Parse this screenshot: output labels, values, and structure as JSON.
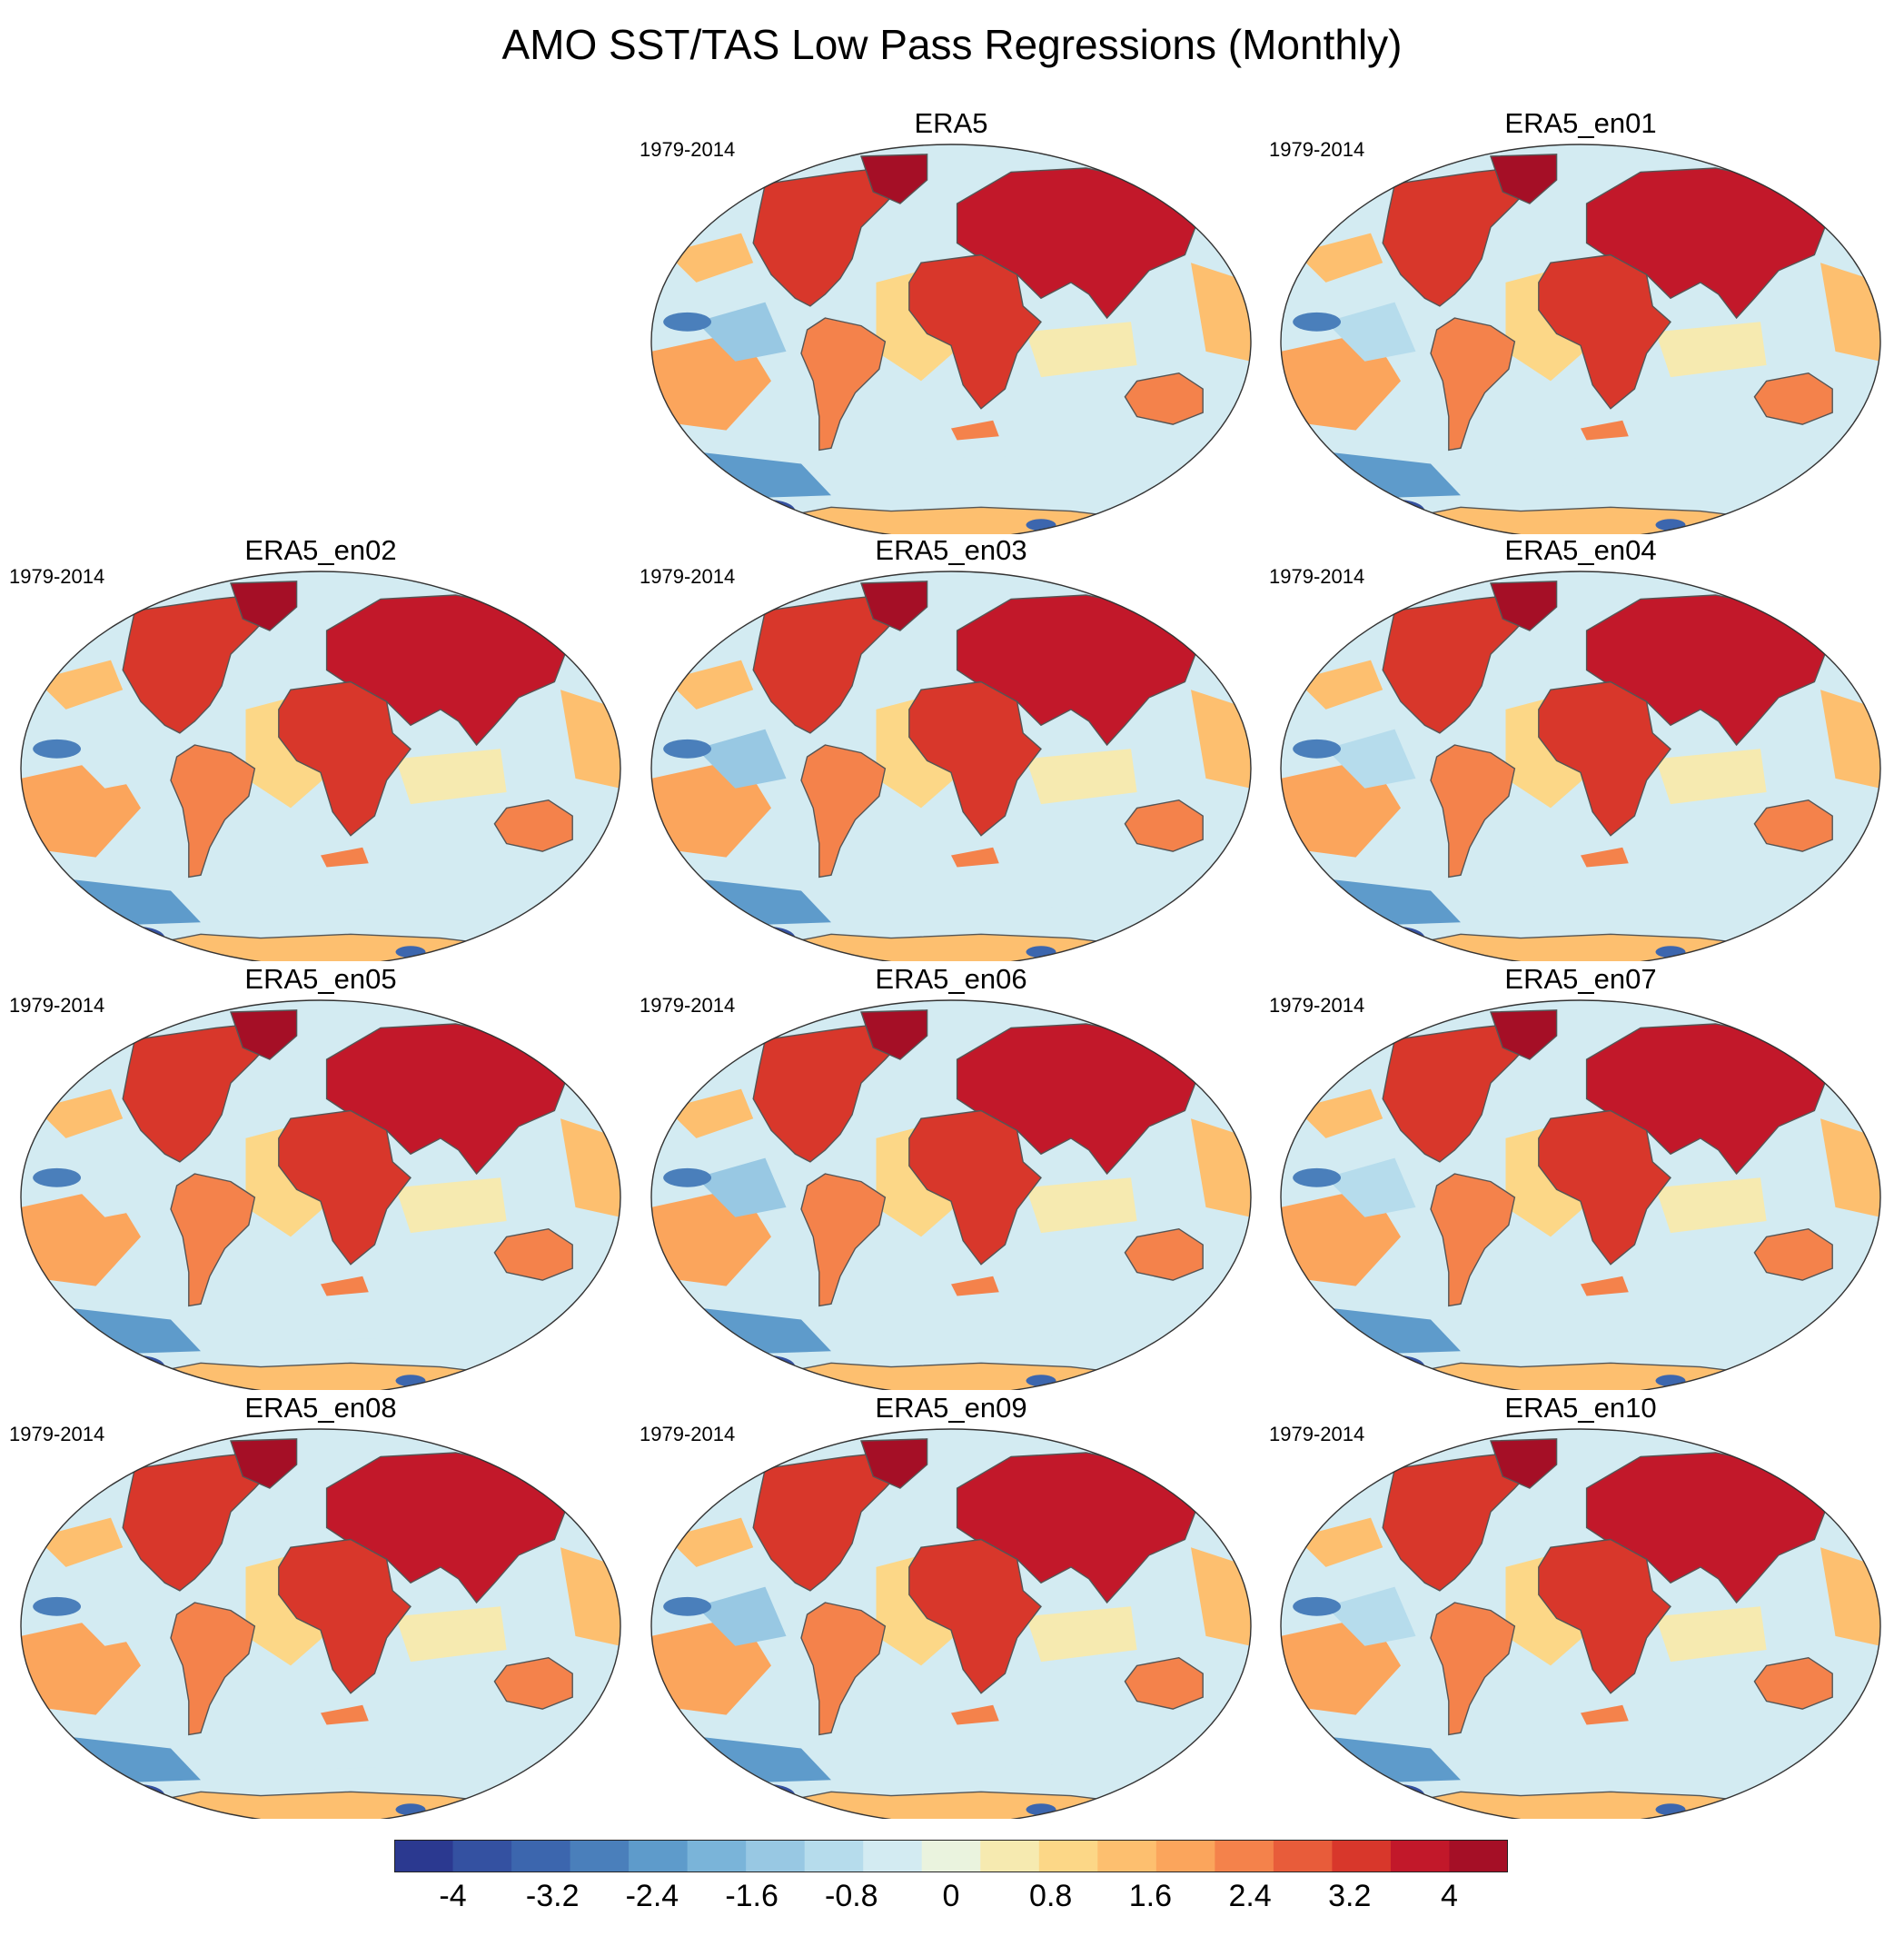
{
  "title": "AMO SST/TAS Low Pass Regressions (Monthly)",
  "panels": [
    {
      "name": "ERA5",
      "period": "1979-2014"
    },
    {
      "name": "ERA5_en01",
      "period": "1979-2014"
    },
    {
      "name": "ERA5_en02",
      "period": "1979-2014"
    },
    {
      "name": "ERA5_en03",
      "period": "1979-2014"
    },
    {
      "name": "ERA5_en04",
      "period": "1979-2014"
    },
    {
      "name": "ERA5_en05",
      "period": "1979-2014"
    },
    {
      "name": "ERA5_en06",
      "period": "1979-2014"
    },
    {
      "name": "ERA5_en07",
      "period": "1979-2014"
    },
    {
      "name": "ERA5_en08",
      "period": "1979-2014"
    },
    {
      "name": "ERA5_en09",
      "period": "1979-2014"
    },
    {
      "name": "ERA5_en10",
      "period": "1979-2014"
    }
  ],
  "colorbar": {
    "colors": [
      "#2b3990",
      "#3451a1",
      "#3c66ae",
      "#4a7fbb",
      "#5e9bcb",
      "#7ab4d9",
      "#98c8e3",
      "#b6dcec",
      "#d3ebf2",
      "#eaf3de",
      "#f6eab0",
      "#fcd787",
      "#fdbf6f",
      "#fba55c",
      "#f4824b",
      "#e85c3a",
      "#d8372b",
      "#c2182a",
      "#a50f26"
    ],
    "tick_labels": [
      "-4",
      "-3.2",
      "-2.4",
      "-1.6",
      "-0.8",
      "0",
      "0.8",
      "1.6",
      "2.4",
      "3.2",
      "4"
    ]
  }
}
